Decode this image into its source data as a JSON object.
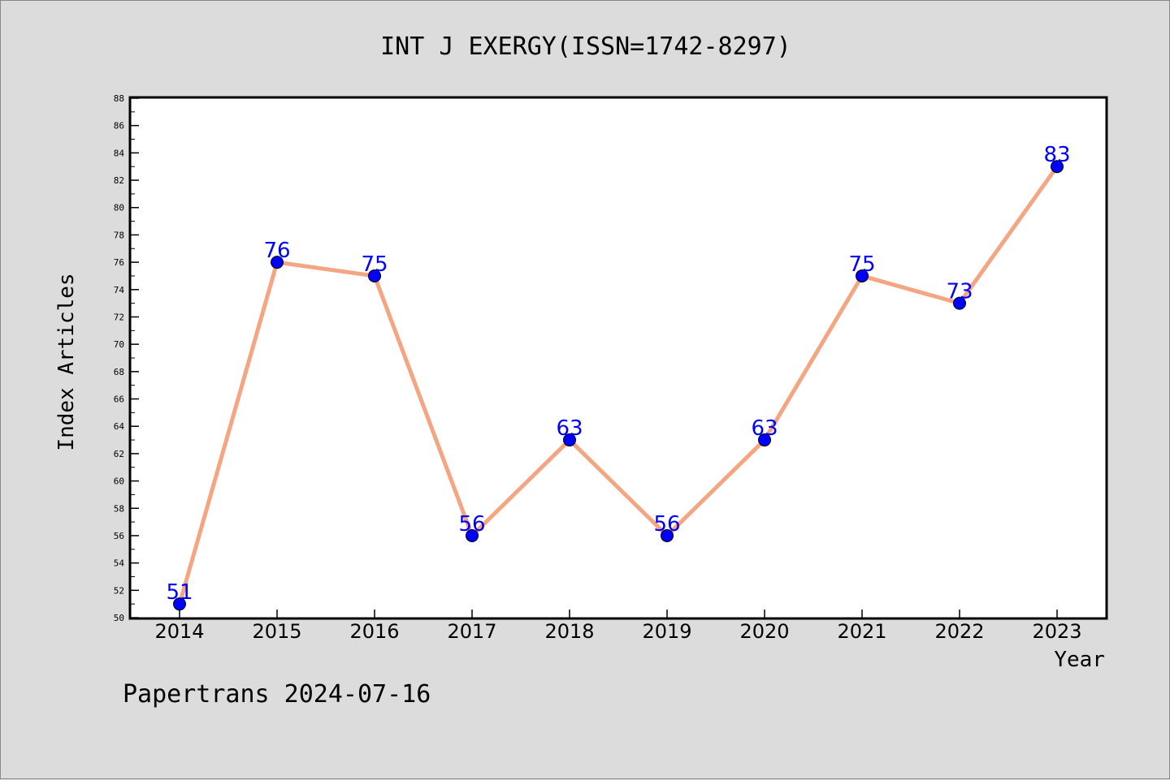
{
  "chart_data": {
    "type": "line",
    "title": "INT J EXERGY(ISSN=1742-8297)",
    "xlabel": "Year",
    "ylabel": "Index Articles",
    "categories": [
      "2014",
      "2015",
      "2016",
      "2017",
      "2018",
      "2019",
      "2020",
      "2021",
      "2022",
      "2023"
    ],
    "series": [
      {
        "values": [
          51,
          76,
          75,
          56,
          63,
          56,
          63,
          75,
          73,
          83
        ]
      }
    ],
    "ylim": [
      50,
      88
    ],
    "ytick_step": 2,
    "grid": false,
    "colors": {
      "line": "#f4a582",
      "marker": "#0000ff",
      "label": "#0000ff"
    }
  },
  "footer": "Papertrans 2024-07-16"
}
